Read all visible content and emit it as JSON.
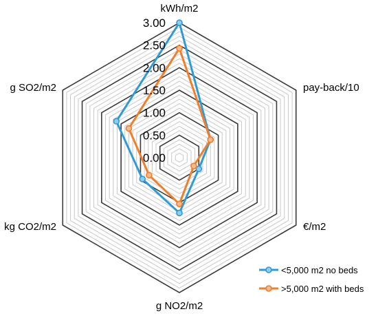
{
  "chart_data": {
    "type": "radar",
    "axes": [
      "kWh/m2",
      "pay-back/10",
      "€/m2",
      "g NO2/m2",
      "kg CO2/m2",
      "g SO2/m2"
    ],
    "rlim": [
      0,
      3.0
    ],
    "ticks": [
      "0.00",
      "0.50",
      "1.00",
      "1.50",
      "2.00",
      "2.50",
      "3.00"
    ],
    "tick_values": [
      0,
      0.5,
      1.0,
      1.5,
      2.0,
      2.5,
      3.0
    ],
    "minor_step": 0.1,
    "grid": true,
    "legend_position": "bottom-right",
    "series": [
      {
        "name": "<5,000 m2 no beds",
        "color": "#2e9bd6",
        "values": [
          3.0,
          0.8,
          0.5,
          1.23,
          0.95,
          1.62
        ]
      },
      {
        "name": ">5,000 m2 with beds",
        "color": "#f07f2c",
        "values": [
          2.43,
          0.8,
          0.37,
          1.03,
          0.78,
          1.3
        ]
      }
    ]
  }
}
